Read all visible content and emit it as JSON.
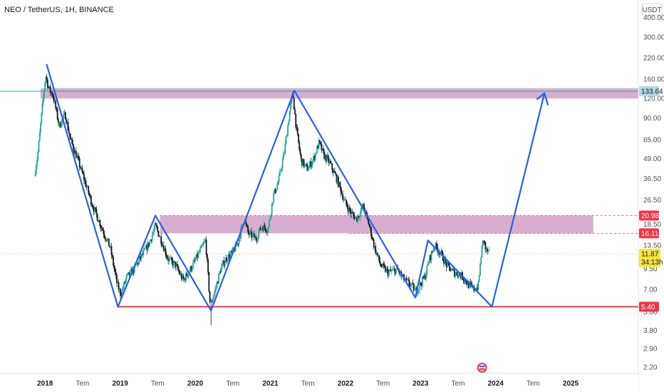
{
  "header": {
    "title": "NEO / TetherUS, 1H, BINANCE"
  },
  "currency": "USDT",
  "colors": {
    "candle_up": "#26a69a",
    "candle_down": "#131722",
    "pattern_line": "#2a5ee8",
    "zone_fill": "#c993c0",
    "support_line": "#f23645",
    "current_tag": "#f5e63b",
    "resistance_tag": "#b2d8e3"
  },
  "chart_data": {
    "type": "candlestick",
    "scale": "log",
    "ylim": [
      2.0,
      520
    ],
    "xlim": [
      2017.4,
      2025.9
    ],
    "y_ticks": [
      2.2,
      2.9,
      3.8,
      5.0,
      7.0,
      9.5,
      13.5,
      18.5,
      26.5,
      36.5,
      49.0,
      65.0,
      90.0,
      120.0,
      160.0,
      220.0,
      300.0,
      400.0
    ],
    "y_tick_labels": [
      "2.20",
      "2.90",
      "3.80",
      "5.00",
      "7.00",
      "9.50",
      "13.50",
      "18.50",
      "26.50",
      "36.50",
      "49.00",
      "65.00",
      "90.00",
      "120.00",
      "160.00",
      "220.00",
      "300.00",
      "400.00"
    ],
    "x_ticks": [
      {
        "x": 2018.0,
        "label": "2018",
        "bold": true
      },
      {
        "x": 2018.5,
        "label": "Tem",
        "bold": false
      },
      {
        "x": 2019.0,
        "label": "2019",
        "bold": true
      },
      {
        "x": 2019.5,
        "label": "Tem",
        "bold": false
      },
      {
        "x": 2020.0,
        "label": "2020",
        "bold": true
      },
      {
        "x": 2020.5,
        "label": "Tem",
        "bold": false
      },
      {
        "x": 2021.0,
        "label": "2021",
        "bold": true
      },
      {
        "x": 2021.5,
        "label": "Tem",
        "bold": false
      },
      {
        "x": 2022.0,
        "label": "2022",
        "bold": true
      },
      {
        "x": 2022.5,
        "label": "Tem",
        "bold": false
      },
      {
        "x": 2023.0,
        "label": "2023",
        "bold": true
      },
      {
        "x": 2023.5,
        "label": "Tem",
        "bold": false
      },
      {
        "x": 2024.0,
        "label": "2024",
        "bold": true
      },
      {
        "x": 2024.5,
        "label": "Tem",
        "bold": false
      },
      {
        "x": 2025.0,
        "label": "2025",
        "bold": true
      }
    ],
    "price_anchors": [
      [
        2017.87,
        38
      ],
      [
        2017.92,
        55
      ],
      [
        2017.97,
        100
      ],
      [
        2018.02,
        170
      ],
      [
        2018.06,
        140
      ],
      [
        2018.12,
        125
      ],
      [
        2018.2,
        80
      ],
      [
        2018.28,
        95
      ],
      [
        2018.35,
        65
      ],
      [
        2018.45,
        48
      ],
      [
        2018.55,
        34
      ],
      [
        2018.65,
        24
      ],
      [
        2018.72,
        20
      ],
      [
        2018.8,
        16
      ],
      [
        2018.88,
        13
      ],
      [
        2018.97,
        7.6
      ],
      [
        2019.02,
        6.5
      ],
      [
        2019.1,
        8.4
      ],
      [
        2019.2,
        9.5
      ],
      [
        2019.3,
        11.5
      ],
      [
        2019.4,
        14
      ],
      [
        2019.48,
        18
      ],
      [
        2019.55,
        15
      ],
      [
        2019.65,
        11
      ],
      [
        2019.75,
        10
      ],
      [
        2019.85,
        8
      ],
      [
        2019.92,
        9
      ],
      [
        2020.0,
        10.5
      ],
      [
        2020.08,
        12.5
      ],
      [
        2020.15,
        14.5
      ],
      [
        2020.21,
        5.5
      ],
      [
        2020.28,
        7
      ],
      [
        2020.35,
        9.5
      ],
      [
        2020.42,
        11
      ],
      [
        2020.5,
        12
      ],
      [
        2020.58,
        14
      ],
      [
        2020.66,
        20
      ],
      [
        2020.72,
        16
      ],
      [
        2020.82,
        15
      ],
      [
        2020.9,
        18
      ],
      [
        2020.98,
        17
      ],
      [
        2021.05,
        28
      ],
      [
        2021.12,
        35
      ],
      [
        2021.2,
        55
      ],
      [
        2021.27,
        100
      ],
      [
        2021.31,
        130
      ],
      [
        2021.36,
        75
      ],
      [
        2021.42,
        48
      ],
      [
        2021.5,
        42
      ],
      [
        2021.58,
        48
      ],
      [
        2021.66,
        62
      ],
      [
        2021.72,
        52
      ],
      [
        2021.8,
        46
      ],
      [
        2021.9,
        36
      ],
      [
        2022.0,
        26
      ],
      [
        2022.08,
        22
      ],
      [
        2022.16,
        20
      ],
      [
        2022.25,
        24
      ],
      [
        2022.33,
        18
      ],
      [
        2022.4,
        13
      ],
      [
        2022.48,
        10
      ],
      [
        2022.58,
        9
      ],
      [
        2022.7,
        9.4
      ],
      [
        2022.8,
        8
      ],
      [
        2022.88,
        7.5
      ],
      [
        2022.95,
        6.8
      ],
      [
        2023.0,
        7.4
      ],
      [
        2023.07,
        8.5
      ],
      [
        2023.13,
        11
      ],
      [
        2023.2,
        13.5
      ],
      [
        2023.28,
        12
      ],
      [
        2023.36,
        10
      ],
      [
        2023.45,
        9
      ],
      [
        2023.55,
        8.7
      ],
      [
        2023.65,
        7.5
      ],
      [
        2023.72,
        7
      ],
      [
        2023.78,
        7.3
      ],
      [
        2023.82,
        12
      ],
      [
        2023.85,
        15
      ],
      [
        2023.88,
        12.5
      ],
      [
        2023.92,
        12
      ]
    ],
    "last_price": 11.87,
    "last_price_label": "11.87",
    "countdown_label": "34:13h",
    "zones": [
      {
        "x_start": 2017.94,
        "x_end": 2025.9,
        "y_low": 120,
        "y_high": 140,
        "label": "133.64",
        "label_price": 133.64
      },
      {
        "x_start": 2019.53,
        "x_end": 2025.3,
        "y_low": 16.11,
        "y_high": 20.98,
        "label_high": "20.98",
        "label_low": "16.11"
      }
    ],
    "support": {
      "x_start": 2018.97,
      "x_end": 2025.9,
      "y": 5.4,
      "label": "5.40"
    },
    "pattern_path": [
      [
        2018.02,
        200
      ],
      [
        2018.97,
        5.4
      ],
      [
        2019.47,
        21
      ],
      [
        2020.21,
        5.1
      ],
      [
        2021.32,
        135
      ],
      [
        2022.43,
        16
      ],
      [
        2022.93,
        6.2
      ],
      [
        2023.1,
        14.5
      ],
      [
        2023.95,
        5.4
      ],
      [
        2024.65,
        130
      ]
    ],
    "arrow_tip": [
      2024.65,
      130
    ],
    "resistance_line_y": 133.64
  }
}
